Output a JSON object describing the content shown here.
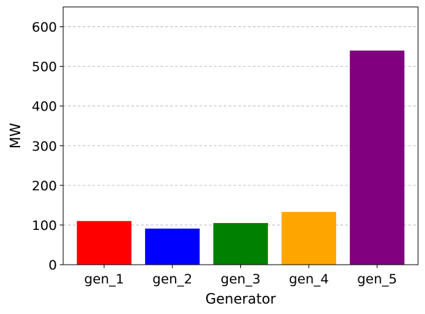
{
  "chart_data": {
    "type": "bar",
    "title": "",
    "xlabel": "Generator",
    "ylabel": "MW",
    "categories": [
      "gen_1",
      "gen_2",
      "gen_3",
      "gen_4",
      "gen_5"
    ],
    "values": [
      110,
      91,
      105,
      133,
      540
    ],
    "colors": [
      "#ff0000",
      "#0000ff",
      "#008000",
      "#ffa500",
      "#800080"
    ],
    "ylim": [
      0,
      650
    ],
    "yticks": [
      0,
      100,
      200,
      300,
      400,
      500,
      600
    ],
    "grid": {
      "y": true,
      "x": false,
      "style": "dashed"
    },
    "legend": "none"
  }
}
